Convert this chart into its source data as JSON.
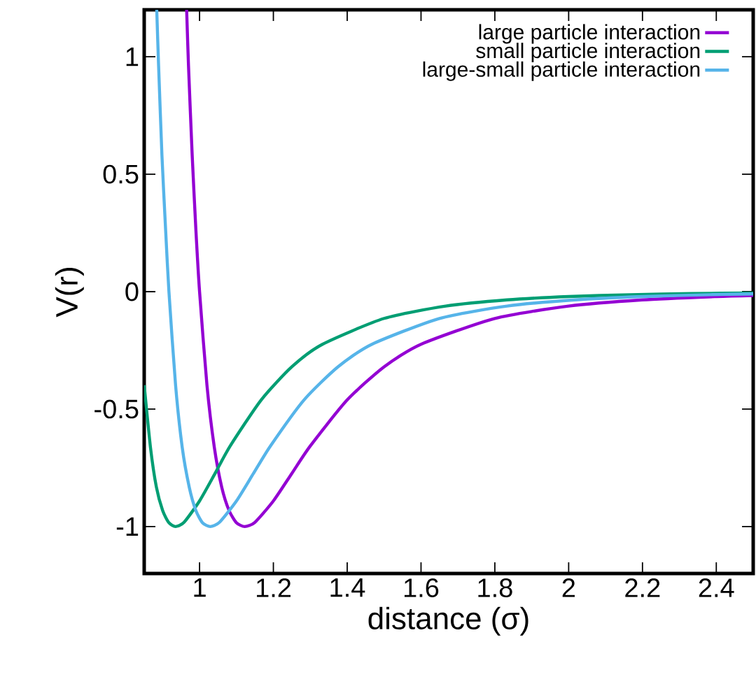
{
  "chart_data": {
    "type": "line",
    "xlabel": "distance (σ)",
    "ylabel": "V(r)",
    "xlim": [
      0.85,
      2.5
    ],
    "ylim": [
      -1.2,
      1.2
    ],
    "xticks": [
      1,
      1.2,
      1.4,
      1.6,
      1.8,
      2,
      2.2,
      2.4
    ],
    "yticks": [
      -1,
      -0.5,
      0,
      0.5,
      1
    ],
    "legend": "top right",
    "grid": false,
    "marker": "none",
    "line_style": "solid",
    "series": [
      {
        "name": "large particle interaction",
        "color": "#9400d3",
        "x": [
          0.965,
          0.97,
          0.98,
          0.99,
          1.0,
          1.02,
          1.04,
          1.06,
          1.08,
          1.1,
          1.1225,
          1.15,
          1.2,
          1.25,
          1.3,
          1.4,
          1.5,
          1.6,
          1.8,
          2.0,
          2.2,
          2.4,
          2.5
        ],
        "values": [
          1.2,
          0.963,
          0.582,
          0.264,
          0,
          -0.398,
          -0.663,
          -0.832,
          -0.932,
          -0.984,
          -1,
          -0.982,
          -0.891,
          -0.774,
          -0.657,
          -0.461,
          -0.32,
          -0.224,
          -0.114,
          -0.0615,
          -0.035,
          -0.0208,
          -0.0163
        ]
      },
      {
        "name": "small particle interaction",
        "color": "#009e73",
        "x": [
          0.85,
          0.867,
          0.883,
          0.9,
          0.917,
          0.935,
          0.958,
          1.0,
          1.042,
          1.083,
          1.167,
          1.25,
          1.333,
          1.5,
          1.667,
          1.833,
          2.0,
          2.167,
          2.333,
          2.5
        ],
        "values": [
          -0.398,
          -0.663,
          -0.832,
          -0.932,
          -0.984,
          -1,
          -0.982,
          -0.891,
          -0.774,
          -0.657,
          -0.461,
          -0.32,
          -0.224,
          -0.114,
          -0.0615,
          -0.035,
          -0.0208,
          -0.0129,
          -0.0083,
          -0.0055
        ]
      },
      {
        "name": "large-small particle interaction",
        "color": "#56b4e9",
        "x": [
          0.884,
          0.889,
          0.898,
          0.908,
          0.917,
          0.935,
          0.953,
          0.972,
          0.99,
          1.008,
          1.029,
          1.054,
          1.1,
          1.146,
          1.192,
          1.283,
          1.375,
          1.467,
          1.65,
          1.833,
          2.017,
          2.2,
          2.383,
          2.5
        ],
        "values": [
          1.2,
          0.963,
          0.582,
          0.264,
          0,
          -0.398,
          -0.663,
          -0.832,
          -0.932,
          -0.984,
          -1,
          -0.982,
          -0.891,
          -0.774,
          -0.657,
          -0.461,
          -0.32,
          -0.224,
          -0.114,
          -0.0615,
          -0.035,
          -0.0208,
          -0.0129,
          -0.0097
        ]
      }
    ]
  }
}
